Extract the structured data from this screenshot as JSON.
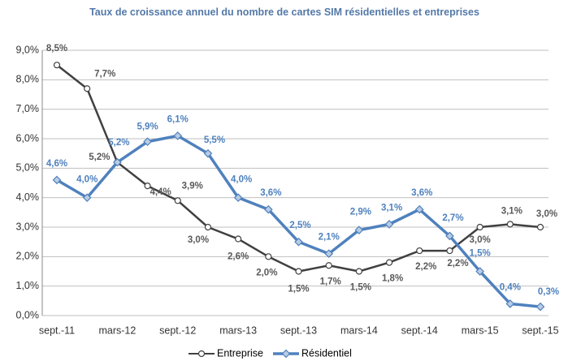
{
  "chart_data": {
    "type": "line",
    "title": "Taux de croissance annuel du nombre de cartes SIM résidentielles et entreprises",
    "categories": [
      "sept.-11",
      null,
      "mars-12",
      null,
      "sept.-12",
      null,
      "mars-13",
      null,
      "sept.-13",
      null,
      "mars-14",
      null,
      "sept.-14",
      null,
      "mars-15",
      null,
      "sept.-15"
    ],
    "series": [
      {
        "name": "Entreprise",
        "color": "#404040",
        "marker": "circle",
        "values": [
          8.5,
          7.7,
          5.2,
          4.4,
          3.9,
          3.0,
          2.6,
          2.0,
          1.5,
          1.7,
          1.5,
          1.8,
          2.2,
          2.2,
          3.0,
          3.1,
          3.0
        ],
        "value_labels": [
          "8,5%",
          "7,7%",
          "5,2%",
          "4,4%",
          "3,9%",
          "3,0%",
          "2,6%",
          "2,0%",
          "1,5%",
          "1,7%",
          "1,5%",
          "1,8%",
          "2,2%",
          "2,2%",
          "3,0%",
          "3,1%",
          "3,0%"
        ]
      },
      {
        "name": "Résidentiel",
        "color": "#4f81bd",
        "marker": "diamond",
        "values": [
          4.6,
          4.0,
          5.2,
          5.9,
          6.1,
          5.5,
          4.0,
          3.6,
          2.5,
          2.1,
          2.9,
          3.1,
          3.6,
          2.7,
          1.5,
          0.4,
          0.3
        ],
        "value_labels": [
          "4,6%",
          "4,0%",
          "5,2%",
          "5,9%",
          "6,1%",
          "5,5%",
          "4,0%",
          "3,6%",
          "2,5%",
          "2,1%",
          "2,9%",
          "3,1%",
          "3,6%",
          "2,7%",
          "1,5%",
          "0,4%",
          "0,3%"
        ]
      }
    ],
    "ylim": [
      0,
      9
    ],
    "yticks": [
      {
        "value": 0,
        "label": "0,0%"
      },
      {
        "value": 1,
        "label": "1,0%"
      },
      {
        "value": 2,
        "label": "2,0%"
      },
      {
        "value": 3,
        "label": "3,0%"
      },
      {
        "value": 4,
        "label": "4,0%"
      },
      {
        "value": 5,
        "label": "5,0%"
      },
      {
        "value": 6,
        "label": "6,0%"
      },
      {
        "value": 7,
        "label": "7,0%"
      },
      {
        "value": 8,
        "label": "8,0%"
      },
      {
        "value": 9,
        "label": "9,0%"
      }
    ],
    "grid": true,
    "legend": "bottom"
  }
}
